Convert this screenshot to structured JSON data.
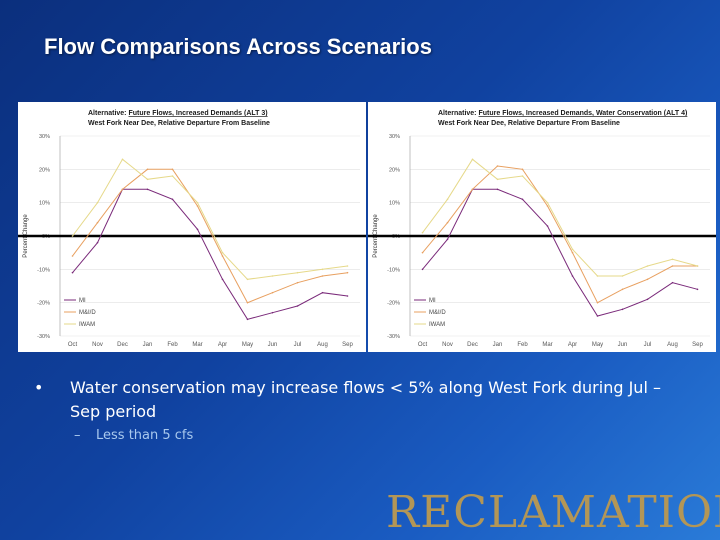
{
  "slide": {
    "title": "Flow Comparisons Across Scenarios",
    "bullet": "Water conservation may increase flows < 5% along West Fork during Jul – Sep period",
    "sub_bullet": "Less than 5 cfs",
    "bullet_marker": "•",
    "sub_marker": "–",
    "logo_text": "RECLAMATION"
  },
  "colors": {
    "background": "#0b2f7d",
    "logo": "#b39656",
    "series": [
      "#7a2a7a",
      "#e8a060",
      "#e6d98a"
    ]
  },
  "chart_data": [
    {
      "type": "line",
      "title_prefix": "Alternative:",
      "title_main": "Future Flows, Increased Demands (ALT 3)",
      "subtitle": "West Fork Near Dee, Relative Departure From Baseline",
      "ylabel": "Percent Change",
      "xlabel": "",
      "categories": [
        "Oct",
        "Nov",
        "Dec",
        "Jan",
        "Feb",
        "Mar",
        "Apr",
        "May",
        "Jun",
        "Jul",
        "Aug",
        "Sep"
      ],
      "yticks": [
        "30%",
        "20%",
        "10%",
        "0%",
        "-10%",
        "-20%",
        "-30%"
      ],
      "ylim": [
        -30,
        30
      ],
      "series": [
        {
          "name": "MI",
          "values": [
            -11,
            -2,
            14,
            14,
            11,
            2,
            -13,
            -25,
            -23,
            -21,
            -17,
            -18
          ]
        },
        {
          "name": "M&I/D",
          "values": [
            -6,
            4,
            14,
            20,
            20,
            9,
            -6,
            -20,
            -17,
            -14,
            -12,
            -11
          ]
        },
        {
          "name": "IWAM",
          "values": [
            0,
            10,
            23,
            17,
            18,
            10,
            -5,
            -13,
            -12,
            -11,
            -10,
            -9
          ]
        }
      ]
    },
    {
      "type": "line",
      "title_prefix": "Alternative:",
      "title_main": "Future Flows, Increased Demands, Water Conservation (ALT 4)",
      "subtitle": "West Fork Near Dee, Relative Departure From Baseline",
      "ylabel": "Percent Change",
      "xlabel": "",
      "categories": [
        "Oct",
        "Nov",
        "Dec",
        "Jan",
        "Feb",
        "Mar",
        "Apr",
        "May",
        "Jun",
        "Jul",
        "Aug",
        "Sep"
      ],
      "yticks": [
        "30%",
        "20%",
        "10%",
        "0%",
        "-10%",
        "-20%",
        "-30%"
      ],
      "ylim": [
        -30,
        30
      ],
      "series": [
        {
          "name": "MI",
          "values": [
            -10,
            -1,
            14,
            14,
            11,
            3,
            -12,
            -24,
            -22,
            -19,
            -14,
            -16
          ]
        },
        {
          "name": "M&I/D",
          "values": [
            -5,
            4,
            14,
            21,
            20,
            9,
            -5,
            -20,
            -16,
            -13,
            -9,
            -9
          ]
        },
        {
          "name": "IWAM",
          "values": [
            1,
            11,
            23,
            17,
            18,
            10,
            -4,
            -12,
            -12,
            -9,
            -7,
            -9
          ]
        }
      ]
    }
  ]
}
